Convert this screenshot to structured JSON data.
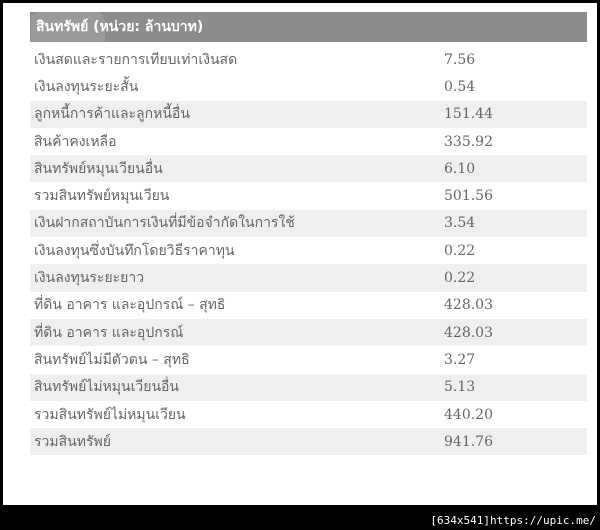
{
  "header": {
    "title": "สินทรัพย์ (หน่วย: ล้านบาท)"
  },
  "rows": [
    {
      "label": "เงินสดและรายการเทียบเท่าเงินสด",
      "value": "7.56",
      "shaded": false
    },
    {
      "label": "เงินลงทุนระยะสั้น",
      "value": "0.54",
      "shaded": false
    },
    {
      "label": "ลูกหนี้การค้าและลูกหนี้อื่น",
      "value": "151.44",
      "shaded": true
    },
    {
      "label": "สินค้าคงเหลือ",
      "value": "335.92",
      "shaded": false
    },
    {
      "label": "สินทรัพย์หมุนเวียนอื่น",
      "value": "6.10",
      "shaded": true
    },
    {
      "label": "รวมสินทรัพย์หมุนเวียน",
      "value": "501.56",
      "shaded": false
    },
    {
      "label": "เงินฝากสถาบันการเงินที่มีข้อจำกัดในการใช้",
      "value": "3.54",
      "shaded": true
    },
    {
      "label": "เงินลงทุนซึ่งบันทึกโดยวิธีราคาทุน",
      "value": "0.22",
      "shaded": false
    },
    {
      "label": "เงินลงทุนระยะยาว",
      "value": "0.22",
      "shaded": true
    },
    {
      "label": "ที่ดิน อาคาร และอุปกรณ์ – สุทธิ",
      "value": "428.03",
      "shaded": false
    },
    {
      "label": "ที่ดิน อาคาร และอุปกรณ์",
      "value": "428.03",
      "shaded": true
    },
    {
      "label": "สินทรัพย์ไม่มีตัวตน – สุทธิ",
      "value": "3.27",
      "shaded": false
    },
    {
      "label": "สินทรัพย์ไม่หมุนเวียนอื่น",
      "value": "5.13",
      "shaded": true
    },
    {
      "label": "รวมสินทรัพย์ไม่หมุนเวียน",
      "value": "440.20",
      "shaded": false
    },
    {
      "label": "รวมสินทรัพย์",
      "value": "941.76",
      "shaded": true
    }
  ],
  "watermark": "[634x541]https://upic.me/"
}
